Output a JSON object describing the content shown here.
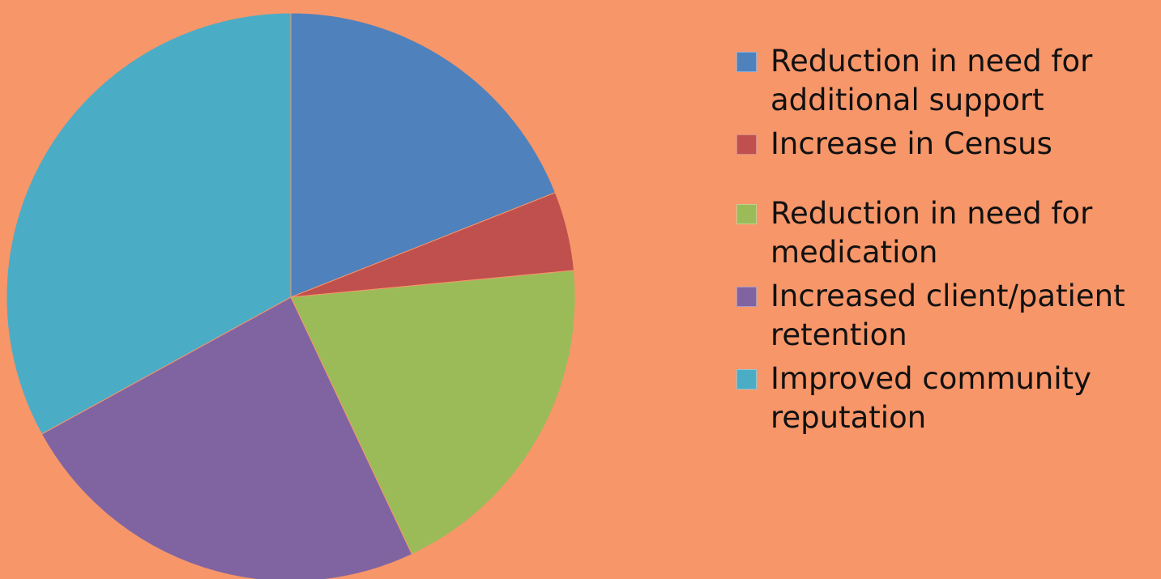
{
  "background": "#F79669",
  "chart_data": {
    "type": "pie",
    "title": "",
    "start_angle_deg": 0,
    "direction": "clockwise",
    "legend_position": "right",
    "slices": [
      {
        "label": "Reduction in need for additional support",
        "value": 19,
        "color": "#4F81BD"
      },
      {
        "label": "Increase in Census",
        "value": 4.5,
        "color": "#C0504D"
      },
      {
        "label": "Reduction in need for medication",
        "value": 19.5,
        "color": "#9BBB59"
      },
      {
        "label": "Increased client/patient retention",
        "value": 24,
        "color": "#8064A2"
      },
      {
        "label": "Improved community reputation",
        "value": 33,
        "color": "#4BACC6"
      }
    ]
  },
  "legend": {
    "items": [
      {
        "label": "Reduction in need for additional support",
        "color": "#4F81BD"
      },
      {
        "label": "Increase in Census",
        "color": "#C0504D"
      },
      {
        "label": "Reduction in need for medication",
        "color": "#9BBB59"
      },
      {
        "label": "Increased client/patient retention",
        "color": "#8064A2"
      },
      {
        "label": "Improved community reputation",
        "color": "#4BACC6"
      }
    ]
  }
}
